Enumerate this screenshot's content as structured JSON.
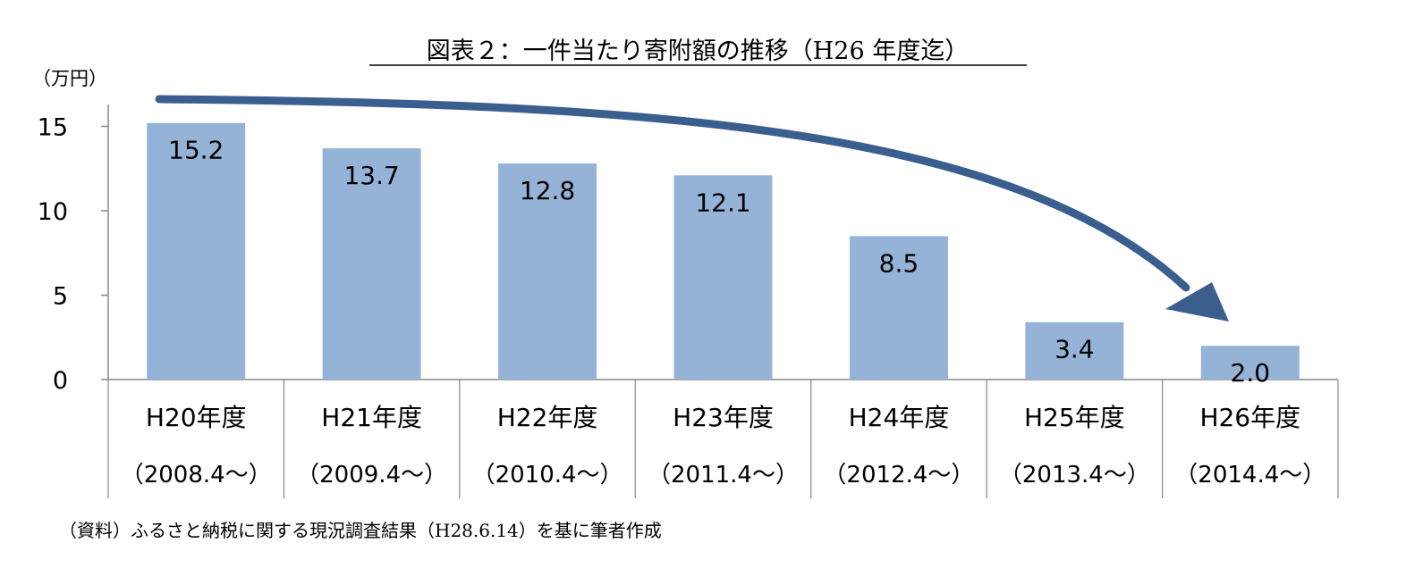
{
  "chart_data": {
    "type": "bar",
    "title": "図表２：一件当たり寄附額の推移（H26 年度迄）",
    "ylabel": "（万円）",
    "xlabel": "",
    "ylim": [
      0,
      16.5
    ],
    "yticks": [
      0,
      5,
      10,
      15
    ],
    "categories": [
      [
        "H20年度",
        "（2008.4～）"
      ],
      [
        "H21年度",
        "（2009.4～）"
      ],
      [
        "H22年度",
        "（2010.4～）"
      ],
      [
        "H23年度",
        "（2011.4～）"
      ],
      [
        "H24年度",
        "（2012.4～）"
      ],
      [
        "H25年度",
        "（2013.4～）"
      ],
      [
        "H26年度",
        "（2014.4～）"
      ]
    ],
    "values": [
      15.2,
      13.7,
      12.8,
      12.1,
      8.5,
      3.4,
      2.0
    ],
    "data_labels": [
      "15.2",
      "13.7",
      "12.8",
      "12.1",
      "8.5",
      "3.4",
      "2.0"
    ],
    "grid": false,
    "annotations": [
      "downward trend arrow"
    ]
  },
  "source": "（資料）ふるさと納税に関する現況調査結果（H28.6.14）を基に筆者作成",
  "colors": {
    "bar": "#95b3d7",
    "arrow": "#3a5f8f",
    "axis": "#888888"
  }
}
